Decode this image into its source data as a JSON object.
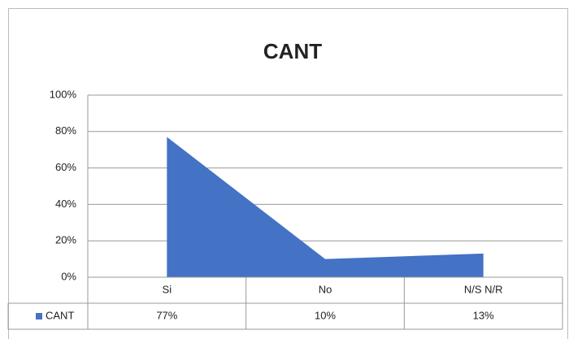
{
  "chart_data": {
    "type": "area",
    "title": "CANT",
    "categories": [
      "Si",
      "No",
      "N/S N/R"
    ],
    "series": [
      {
        "name": "CANT",
        "color": "#4472c4",
        "values": [
          77,
          10,
          13
        ],
        "value_labels": [
          "77%",
          "10%",
          "13%"
        ]
      }
    ],
    "ylim": [
      0,
      100
    ],
    "yticks": [
      {
        "value": 0,
        "label": "0%"
      },
      {
        "value": 20,
        "label": "20%"
      },
      {
        "value": 40,
        "label": "40%"
      },
      {
        "value": 60,
        "label": "60%"
      },
      {
        "value": 80,
        "label": "80%"
      },
      {
        "value": 100,
        "label": "100%"
      }
    ],
    "grid": true,
    "data_table": true
  }
}
